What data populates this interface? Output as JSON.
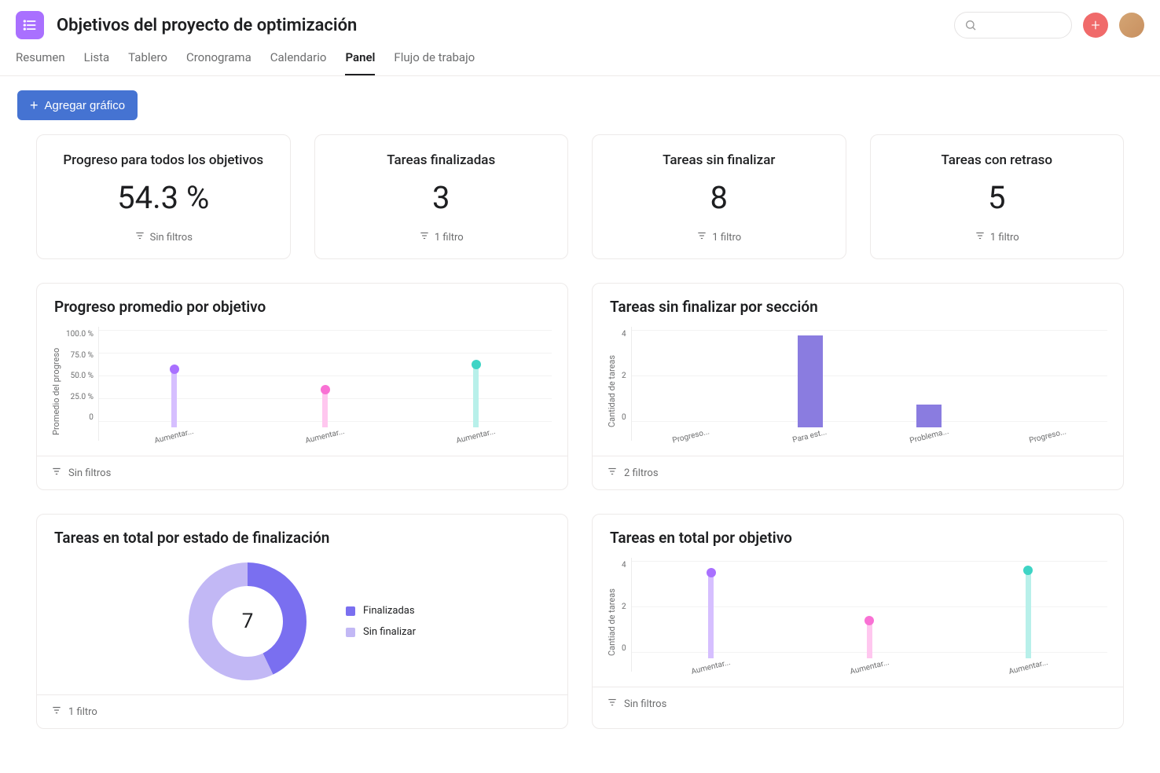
{
  "page": {
    "title": "Objetivos del proyecto de optimización",
    "icon_bg": "#a970ff"
  },
  "tabs": [
    {
      "label": "Resumen",
      "active": false
    },
    {
      "label": "Lista",
      "active": false
    },
    {
      "label": "Tablero",
      "active": false
    },
    {
      "label": "Cronograma",
      "active": false
    },
    {
      "label": "Calendario",
      "active": false
    },
    {
      "label": "Panel",
      "active": true
    },
    {
      "label": "Flujo de trabajo",
      "active": false
    }
  ],
  "toolbar": {
    "add_chart_label": "Agregar gráfico"
  },
  "stats": [
    {
      "title": "Progreso para todos los objetivos",
      "value": "54.3 %",
      "filter": "Sin filtros"
    },
    {
      "title": "Tareas finalizadas",
      "value": "3",
      "filter": "1 filtro"
    },
    {
      "title": "Tareas sin finalizar",
      "value": "8",
      "filter": "1 filtro"
    },
    {
      "title": "Tareas con retraso",
      "value": "5",
      "filter": "1 filtro"
    }
  ],
  "chart_progress": {
    "title": "Progreso promedio por objetivo",
    "type": "lollipop",
    "y_label": "Promedio del progreso",
    "y_ticks": [
      "100.0 %",
      "75.0 %",
      "50.0 %",
      "25.0 %",
      "0"
    ],
    "y_max": 100,
    "points": [
      {
        "label": "Aumentar...",
        "value": 60,
        "dot_color": "#a970ff",
        "stem_color": "#d6bfff"
      },
      {
        "label": "Aumentar...",
        "value": 38,
        "dot_color": "#f971d4",
        "stem_color": "#ffc7ef"
      },
      {
        "label": "Aumentar...",
        "value": 65,
        "dot_color": "#3ed4c5",
        "stem_color": "#b8f0ea"
      }
    ],
    "footer": "Sin filtros"
  },
  "chart_unfinished": {
    "title": "Tareas sin finalizar por sección",
    "type": "bar",
    "y_label": "Cantidad de tareas",
    "y_ticks": [
      "4",
      "2",
      "0"
    ],
    "y_max": 4,
    "bars": [
      {
        "label": "Progreso...",
        "value": 0,
        "color": "#8a7ce0"
      },
      {
        "label": "Para est...",
        "value": 4,
        "color": "#8a7ce0"
      },
      {
        "label": "Problema...",
        "value": 1,
        "color": "#8a7ce0"
      },
      {
        "label": "Progreso...",
        "value": 0,
        "color": "#8a7ce0"
      }
    ],
    "footer": "2 filtros"
  },
  "chart_donut": {
    "title": "Tareas en total por estado de finalización",
    "type": "donut",
    "center_value": "7",
    "slices": [
      {
        "label": "Finalizadas",
        "value": 3,
        "color": "#7a6ff0"
      },
      {
        "label": "Sin finalizar",
        "value": 4,
        "color": "#c2b8f5"
      }
    ],
    "footer": "1 filtro"
  },
  "chart_total_obj": {
    "title": "Tareas en total por objetivo",
    "type": "lollipop",
    "y_label": "Cantiad de tareas",
    "y_ticks": [
      "4",
      "2",
      "0"
    ],
    "y_max": 4,
    "points": [
      {
        "label": "Aumentar...",
        "value": 3.6,
        "dot_color": "#a970ff",
        "stem_color": "#d6bfff"
      },
      {
        "label": "Aumentar...",
        "value": 1.5,
        "dot_color": "#f971d4",
        "stem_color": "#ffc7ef"
      },
      {
        "label": "Aumentar...",
        "value": 3.7,
        "dot_color": "#3ed4c5",
        "stem_color": "#b8f0ea"
      }
    ],
    "footer": "Sin filtros"
  },
  "colors": {
    "primary_button": "#4573d2",
    "add_circle": "#f06a6a",
    "border": "#edeae9",
    "text_muted": "#6d6e6f"
  }
}
